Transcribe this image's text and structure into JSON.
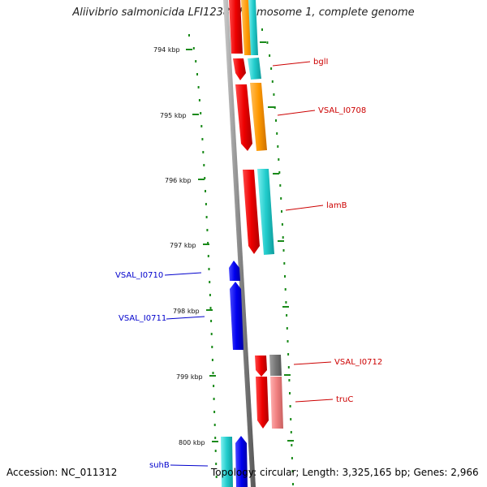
{
  "title": "Aliivibrio salmonicida LFI1238 chromosome 1, complete genome",
  "footer": {
    "accession": "Accession: NC_011312",
    "summary": "Topology: circular; Length: 3,325,165 bp; Genes: 2,966"
  },
  "colors": {
    "backbone": "#888888",
    "tick": "#1a8a1a",
    "forward_label": "#cc0000",
    "reverse_label": "#0000cc"
  },
  "ruler": {
    "unit": "kbp",
    "labels": [
      "794 kbp",
      "795 kbp",
      "796 kbp",
      "797 kbp",
      "798 kbp",
      "799 kbp",
      "800 kbp"
    ]
  },
  "genes": [
    {
      "name": "bglI",
      "strand": "forward",
      "color": "#cc0000"
    },
    {
      "name": "VSAL_I0708",
      "strand": "forward",
      "color": "#cc0000"
    },
    {
      "name": "lamB",
      "strand": "forward",
      "color": "#cc0000"
    },
    {
      "name": "VSAL_I0710",
      "strand": "reverse",
      "color": "#0000cc"
    },
    {
      "name": "VSAL_I0711",
      "strand": "reverse",
      "color": "#0000cc"
    },
    {
      "name": "VSAL_I0712",
      "strand": "forward",
      "color": "#cc0000"
    },
    {
      "name": "truC",
      "strand": "forward",
      "color": "#cc0000"
    },
    {
      "name": "suhB",
      "strand": "reverse",
      "color": "#0000cc"
    }
  ]
}
